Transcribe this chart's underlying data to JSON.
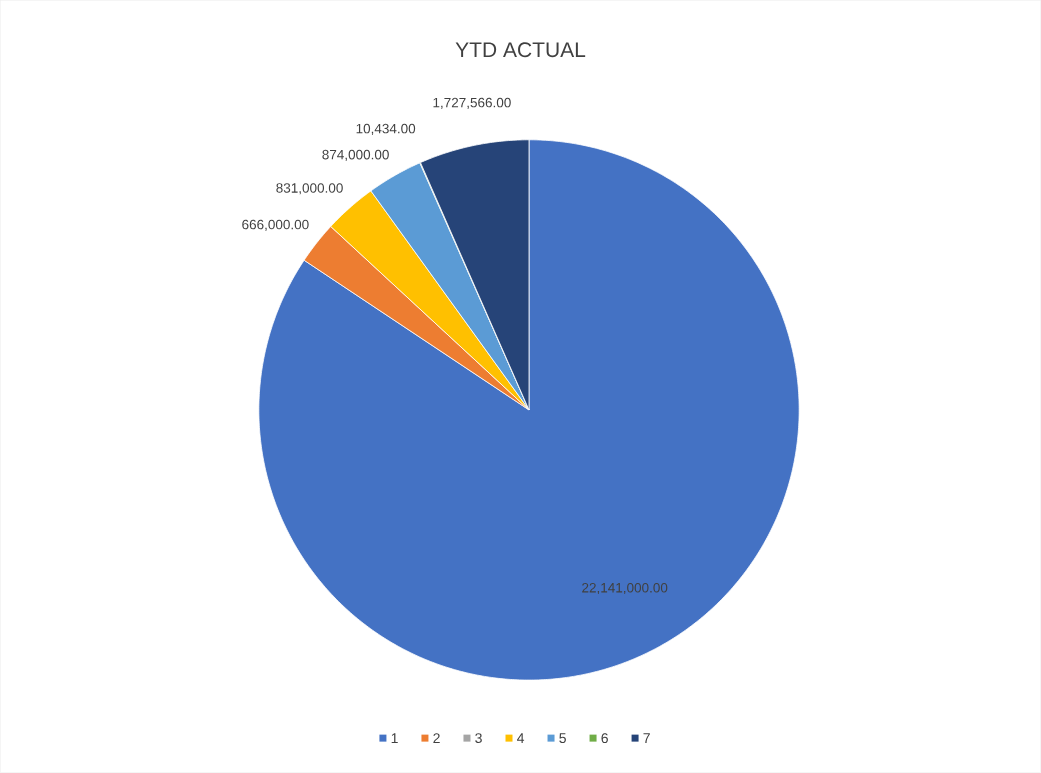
{
  "chart_data": {
    "type": "pie",
    "title": "YTD ACTUAL",
    "categories": [
      "1",
      "2",
      "3",
      "4",
      "5",
      "6",
      "7"
    ],
    "values": [
      22141000,
      666000,
      null,
      831000,
      874000,
      10434,
      1727566
    ],
    "value_labels": [
      "22,141,000.00",
      "666,000.00",
      null,
      "831,000.00",
      "874,000.00",
      "10,434.00",
      "1,727,566.00"
    ],
    "colors": [
      "#4472c4",
      "#ed7d31",
      "#a5a5a5",
      "#ffc000",
      "#5b9bd5",
      "#70ad47",
      "#264478"
    ],
    "legend": "bottom"
  }
}
